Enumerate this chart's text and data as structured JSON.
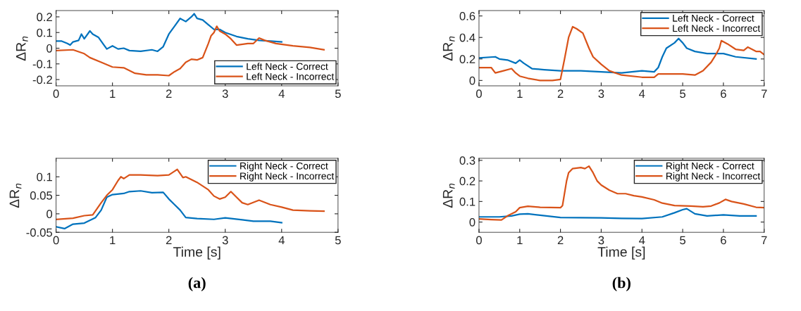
{
  "chart_data": [
    {
      "type": "line",
      "ylabel": "ΔR$_{n}$",
      "xlim": [
        0,
        5
      ],
      "xticks": [
        0,
        1,
        2,
        3,
        4,
        5
      ],
      "ylim": [
        -0.24,
        0.24
      ],
      "yticks": [
        -0.2,
        -0.1,
        0,
        0.1,
        0.2
      ],
      "legend": "bottom right",
      "grid": false,
      "series": [
        {
          "name": "Left Neck - Correct",
          "color": "#0072bd",
          "x": [
            0,
            0.1,
            0.2,
            0.25,
            0.3,
            0.4,
            0.45,
            0.5,
            0.6,
            0.65,
            0.75,
            0.85,
            0.9,
            1.0,
            1.1,
            1.2,
            1.3,
            1.5,
            1.7,
            1.8,
            1.9,
            2.0,
            2.1,
            2.2,
            2.3,
            2.4,
            2.45,
            2.5,
            2.6,
            2.7,
            2.8,
            2.9,
            3.0,
            3.2,
            3.4,
            3.6,
            3.8,
            4.0
          ],
          "values": [
            0.045,
            0.045,
            0.03,
            0.02,
            0.04,
            0.05,
            0.09,
            0.06,
            0.11,
            0.09,
            0.07,
            0.02,
            -0.005,
            0.015,
            -0.005,
            0.0,
            -0.015,
            -0.02,
            -0.01,
            -0.02,
            0.01,
            0.09,
            0.14,
            0.19,
            0.17,
            0.2,
            0.22,
            0.19,
            0.18,
            0.15,
            0.12,
            0.12,
            0.1,
            0.075,
            0.06,
            0.05,
            0.045,
            0.04
          ]
        },
        {
          "name": "Left Neck - Incorrect",
          "color": "#d95319",
          "x": [
            0,
            0.3,
            0.5,
            0.6,
            0.8,
            1.0,
            1.2,
            1.4,
            1.6,
            1.8,
            2.0,
            2.1,
            2.2,
            2.3,
            2.4,
            2.5,
            2.6,
            2.7,
            2.75,
            2.8,
            2.85,
            2.9,
            3.0,
            3.1,
            3.2,
            3.4,
            3.5,
            3.6,
            3.7,
            3.9,
            4.2,
            4.5,
            4.75
          ],
          "values": [
            -0.015,
            -0.01,
            -0.035,
            -0.06,
            -0.09,
            -0.12,
            -0.125,
            -0.16,
            -0.17,
            -0.17,
            -0.175,
            -0.15,
            -0.13,
            -0.09,
            -0.07,
            -0.075,
            -0.06,
            0.03,
            0.08,
            0.1,
            0.14,
            0.11,
            0.09,
            0.06,
            0.02,
            0.03,
            0.03,
            0.065,
            0.05,
            0.03,
            0.015,
            0.005,
            -0.01
          ]
        }
      ]
    },
    {
      "type": "line",
      "ylabel": "ΔR$_{n}$",
      "xlim": [
        0,
        7
      ],
      "xticks": [
        0,
        1,
        2,
        3,
        4,
        5,
        6,
        7
      ],
      "ylim": [
        -0.05,
        0.65
      ],
      "yticks": [
        0,
        0.2,
        0.4,
        0.6
      ],
      "legend": "top right",
      "grid": false,
      "series": [
        {
          "name": "Left Neck - Correct",
          "color": "#0072bd",
          "x": [
            0,
            0.4,
            0.5,
            0.7,
            0.9,
            1.0,
            1.1,
            1.3,
            1.6,
            2.0,
            2.5,
            3.0,
            3.5,
            4.0,
            4.3,
            4.4,
            4.5,
            4.6,
            4.8,
            4.9,
            5.0,
            5.1,
            5.3,
            5.6,
            6.0,
            6.3,
            6.8
          ],
          "values": [
            0.21,
            0.22,
            0.2,
            0.19,
            0.16,
            0.19,
            0.16,
            0.11,
            0.1,
            0.09,
            0.09,
            0.08,
            0.07,
            0.09,
            0.08,
            0.12,
            0.22,
            0.3,
            0.35,
            0.39,
            0.35,
            0.3,
            0.27,
            0.25,
            0.25,
            0.22,
            0.2
          ]
        },
        {
          "name": "Left Neck - Incorrect",
          "color": "#d95319",
          "x": [
            0,
            0.3,
            0.4,
            0.5,
            0.6,
            0.8,
            0.9,
            1.0,
            1.2,
            1.5,
            1.8,
            2.0,
            2.1,
            2.2,
            2.3,
            2.4,
            2.55,
            2.7,
            2.8,
            3.0,
            3.2,
            3.5,
            4.0,
            4.3,
            4.4,
            4.6,
            5.0,
            5.3,
            5.5,
            5.7,
            5.8,
            5.9,
            5.95,
            6.1,
            6.3,
            6.5,
            6.6,
            6.8,
            6.9,
            7.0
          ],
          "values": [
            0.12,
            0.12,
            0.07,
            0.08,
            0.09,
            0.11,
            0.07,
            0.04,
            0.02,
            0.0,
            0.0,
            0.01,
            0.2,
            0.4,
            0.5,
            0.48,
            0.44,
            0.3,
            0.22,
            0.15,
            0.09,
            0.05,
            0.03,
            0.03,
            0.06,
            0.06,
            0.06,
            0.05,
            0.09,
            0.17,
            0.23,
            0.3,
            0.37,
            0.34,
            0.29,
            0.28,
            0.31,
            0.27,
            0.27,
            0.24
          ]
        }
      ]
    },
    {
      "type": "line",
      "ylabel": "ΔR$_{n}$",
      "xlabel": "Time [s]",
      "annotations": [
        "(a)"
      ],
      "xlim": [
        0,
        5
      ],
      "xticks": [
        0,
        1,
        2,
        3,
        4,
        5
      ],
      "ylim": [
        -0.05,
        0.15
      ],
      "yticks": [
        -0.05,
        0,
        0.05,
        0.1
      ],
      "legend": "top right",
      "grid": false,
      "series": [
        {
          "name": "Right Neck - Correct",
          "color": "#0072bd",
          "x": [
            0,
            0.15,
            0.3,
            0.5,
            0.7,
            0.8,
            0.9,
            1.0,
            1.2,
            1.3,
            1.5,
            1.7,
            1.9,
            2.0,
            2.1,
            2.2,
            2.3,
            2.5,
            2.8,
            3.0,
            3.3,
            3.5,
            3.8,
            4.0
          ],
          "values": [
            -0.035,
            -0.04,
            -0.028,
            -0.025,
            -0.01,
            0.01,
            0.045,
            0.052,
            0.055,
            0.06,
            0.062,
            0.057,
            0.058,
            0.04,
            0.025,
            0.01,
            -0.01,
            -0.013,
            -0.015,
            -0.011,
            -0.016,
            -0.02,
            -0.02,
            -0.024
          ]
        },
        {
          "name": "Right Neck - Incorrect",
          "color": "#d95319",
          "x": [
            0,
            0.3,
            0.5,
            0.65,
            0.8,
            0.9,
            1.0,
            1.1,
            1.15,
            1.2,
            1.3,
            1.5,
            1.8,
            2.0,
            2.1,
            2.15,
            2.25,
            2.3,
            2.5,
            2.7,
            2.8,
            2.9,
            3.0,
            3.1,
            3.2,
            3.3,
            3.4,
            3.6,
            3.8,
            4.0,
            4.2,
            4.5,
            4.75
          ],
          "values": [
            -0.015,
            -0.012,
            -0.005,
            -0.003,
            0.03,
            0.05,
            0.065,
            0.09,
            0.1,
            0.095,
            0.105,
            0.105,
            0.103,
            0.105,
            0.115,
            0.12,
            0.098,
            0.1,
            0.085,
            0.065,
            0.048,
            0.04,
            0.045,
            0.06,
            0.045,
            0.03,
            0.025,
            0.037,
            0.025,
            0.018,
            0.01,
            0.008,
            0.007
          ]
        }
      ]
    },
    {
      "type": "line",
      "ylabel": "ΔR$_{n}$",
      "xlabel": "Time [s]",
      "annotations": [
        "(b)"
      ],
      "xlim": [
        0,
        7
      ],
      "xticks": [
        0,
        1,
        2,
        3,
        4,
        5,
        6,
        7
      ],
      "ylim": [
        -0.05,
        0.31
      ],
      "yticks": [
        0,
        0.1,
        0.2,
        0.3
      ],
      "legend": "top right",
      "grid": false,
      "series": [
        {
          "name": "Right Neck - Correct",
          "color": "#0072bd",
          "x": [
            0,
            0.5,
            0.8,
            1.0,
            1.2,
            1.5,
            2.0,
            3.0,
            3.5,
            4.0,
            4.5,
            4.8,
            5.0,
            5.1,
            5.3,
            5.6,
            6.0,
            6.4,
            6.8
          ],
          "values": [
            0.025,
            0.025,
            0.03,
            0.038,
            0.04,
            0.033,
            0.022,
            0.02,
            0.018,
            0.017,
            0.025,
            0.045,
            0.06,
            0.065,
            0.04,
            0.03,
            0.035,
            0.03,
            0.03
          ]
        },
        {
          "name": "Right Neck - Incorrect",
          "color": "#d95319",
          "x": [
            0,
            0.3,
            0.55,
            0.7,
            0.9,
            1.0,
            1.2,
            1.5,
            2.0,
            2.05,
            2.15,
            2.2,
            2.3,
            2.5,
            2.6,
            2.7,
            2.8,
            2.9,
            3.0,
            3.2,
            3.4,
            3.6,
            3.8,
            4.0,
            4.3,
            4.5,
            4.8,
            5.2,
            5.5,
            5.7,
            5.9,
            6.05,
            6.2,
            6.5,
            6.8,
            7.0
          ],
          "values": [
            0.015,
            0.012,
            0.01,
            0.03,
            0.05,
            0.07,
            0.077,
            0.072,
            0.07,
            0.08,
            0.2,
            0.24,
            0.26,
            0.265,
            0.26,
            0.272,
            0.24,
            0.2,
            0.18,
            0.155,
            0.138,
            0.138,
            0.128,
            0.122,
            0.108,
            0.092,
            0.08,
            0.078,
            0.074,
            0.078,
            0.093,
            0.11,
            0.1,
            0.088,
            0.072,
            0.07
          ]
        }
      ]
    }
  ]
}
